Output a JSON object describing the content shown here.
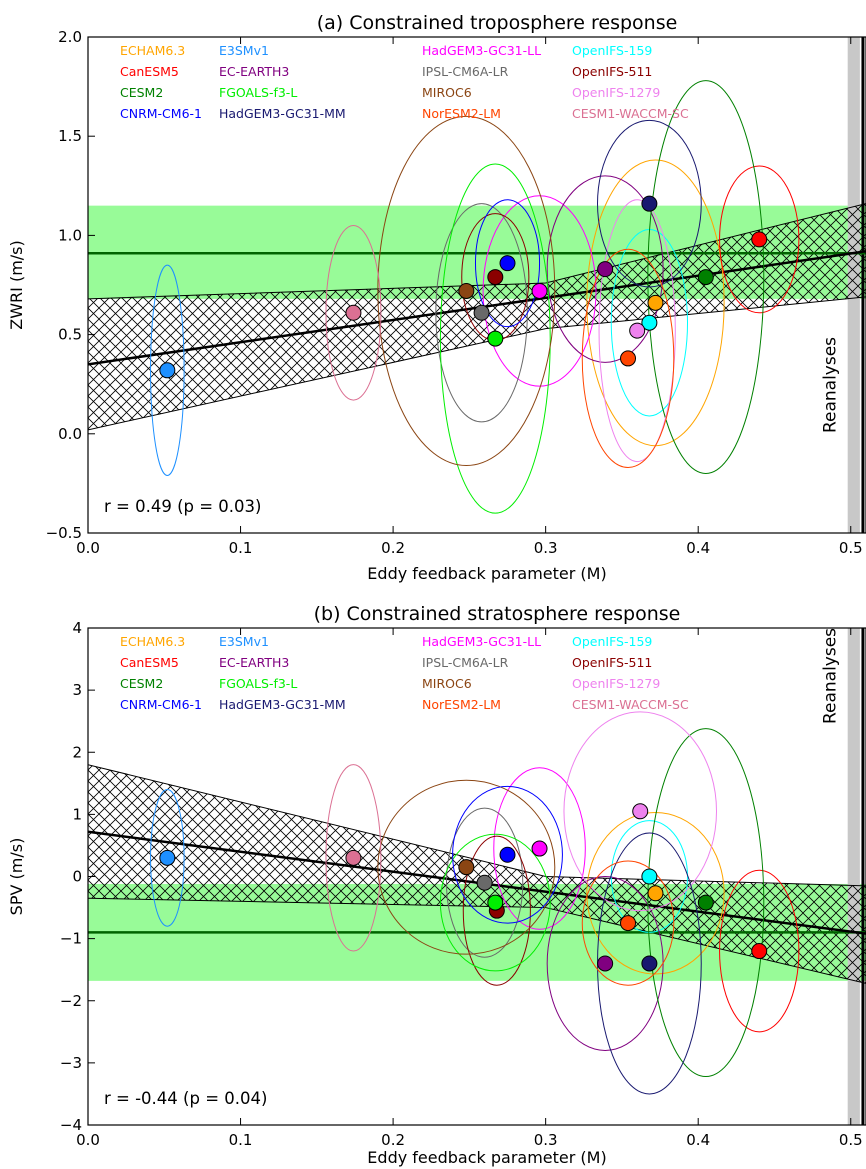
{
  "models": [
    {
      "name": "ECHAM6.3",
      "color": "#FFA500"
    },
    {
      "name": "E3SMv1",
      "color": "#1E90FF"
    },
    {
      "name": "HadGEM3-GC31-LL",
      "color": "#FF00FF"
    },
    {
      "name": "OpenIFS-159",
      "color": "#00FFFF"
    },
    {
      "name": "CanESM5",
      "color": "#FF0000"
    },
    {
      "name": "EC-EARTH3",
      "color": "#800080"
    },
    {
      "name": "IPSL-CM6A-LR",
      "color": "#696969"
    },
    {
      "name": "OpenIFS-511",
      "color": "#8B0000"
    },
    {
      "name": "CESM2",
      "color": "#008000"
    },
    {
      "name": "FGOALS-f3-L",
      "color": "#00EE00"
    },
    {
      "name": "MIROC6",
      "color": "#8B4513"
    },
    {
      "name": "OpenIFS-1279",
      "color": "#EE82EE"
    },
    {
      "name": "CNRM-CM6-1",
      "color": "#0000FF"
    },
    {
      "name": "HadGEM3-GC31-MM",
      "color": "#191970"
    },
    {
      "name": "NorESM2-LM",
      "color": "#FF4500"
    },
    {
      "name": "CESM1-WACCM-SC",
      "color": "#DB7093"
    }
  ],
  "chart_data": [
    {
      "type": "scatter",
      "title": "(a) Constrained troposphere response",
      "xlabel": "Eddy feedback parameter (M)",
      "ylabel": "ZWRI (m/s)",
      "xlim": [
        0.0,
        0.51
      ],
      "ylim": [
        -0.5,
        2.0
      ],
      "xticks": [
        "0.0",
        "0.1",
        "0.2",
        "0.3",
        "0.4",
        "0.5"
      ],
      "yticks": [
        "−0.5",
        "0.0",
        "0.5",
        "1.0",
        "1.5",
        "2.0"
      ],
      "reanalyses_label": "Reanalyses",
      "reanalyses_band": [
        0.498,
        0.506
      ],
      "reanalyses_x": 0.508,
      "stat": "r = 0.49  (p = 0.03)",
      "constraint_mean": 0.91,
      "constraint_range": [
        0.68,
        1.15
      ],
      "regression": {
        "x": [
          0.0,
          0.51
        ],
        "y": [
          0.35,
          0.92
        ]
      },
      "confidence_upper": {
        "x": [
          0.0,
          0.3,
          0.51
        ],
        "y": [
          0.68,
          0.76,
          1.16
        ]
      },
      "confidence_lower": {
        "x": [
          0.0,
          0.3,
          0.51
        ],
        "y": [
          0.02,
          0.53,
          0.69
        ]
      },
      "points": [
        {
          "model": "ECHAM6.3",
          "x": 0.372,
          "y": 0.66,
          "ex": 0.045,
          "ey": 0.72
        },
        {
          "model": "E3SMv1",
          "x": 0.052,
          "y": 0.32,
          "ex": 0.011,
          "ey": 0.53
        },
        {
          "model": "HadGEM3-GC31-LL",
          "x": 0.296,
          "y": 0.72,
          "ex": 0.037,
          "ey": 0.48
        },
        {
          "model": "OpenIFS-159",
          "x": 0.368,
          "y": 0.56,
          "ex": 0.025,
          "ey": 0.47
        },
        {
          "model": "CanESM5",
          "x": 0.44,
          "y": 0.98,
          "ex": 0.026,
          "ey": 0.37
        },
        {
          "model": "EC-EARTH3",
          "x": 0.339,
          "y": 0.83,
          "ex": 0.038,
          "ey": 0.47
        },
        {
          "model": "IPSL-CM6A-LR",
          "x": 0.258,
          "y": 0.61,
          "ex": 0.03,
          "ey": 0.55
        },
        {
          "model": "OpenIFS-511",
          "x": 0.267,
          "y": 0.79,
          "ex": 0.022,
          "ey": 0.32
        },
        {
          "model": "CESM2",
          "x": 0.405,
          "y": 0.79,
          "ex": 0.038,
          "ey": 0.99
        },
        {
          "model": "FGOALS-f3-L",
          "x": 0.267,
          "y": 0.48,
          "ex": 0.036,
          "ey": 0.88
        },
        {
          "model": "MIROC6",
          "x": 0.248,
          "y": 0.72,
          "ex": 0.058,
          "ey": 0.88
        },
        {
          "model": "OpenIFS-1279",
          "x": 0.36,
          "y": 0.52,
          "ex": 0.025,
          "ey": 0.66
        },
        {
          "model": "CNRM-CM6-1",
          "x": 0.275,
          "y": 0.86,
          "ex": 0.021,
          "ey": 0.32
        },
        {
          "model": "HadGEM3-GC31-MM",
          "x": 0.368,
          "y": 1.16,
          "ex": 0.034,
          "ey": 0.42
        },
        {
          "model": "NorESM2-LM",
          "x": 0.354,
          "y": 0.38,
          "ex": 0.03,
          "ey": 0.55
        },
        {
          "model": "CESM1-WACCM-SC",
          "x": 0.174,
          "y": 0.61,
          "ex": 0.018,
          "ey": 0.44
        }
      ]
    },
    {
      "type": "scatter",
      "title": "(b) Constrained stratosphere response",
      "xlabel": "Eddy feedback parameter (M)",
      "ylabel": "SPV (m/s)",
      "xlim": [
        0.0,
        0.51
      ],
      "ylim": [
        -4,
        4
      ],
      "xticks": [
        "0.0",
        "0.1",
        "0.2",
        "0.3",
        "0.4",
        "0.5"
      ],
      "yticks": [
        "−4",
        "−3",
        "−2",
        "−1",
        "0",
        "1",
        "2",
        "3",
        "4"
      ],
      "reanalyses_label": "Reanalyses",
      "reanalyses_band": [
        0.498,
        0.506
      ],
      "reanalyses_x": 0.508,
      "stat": "r = -0.44  (p = 0.04)",
      "constraint_mean": -0.9,
      "constraint_range": [
        -1.68,
        -0.12
      ],
      "regression": {
        "x": [
          0.0,
          0.51
        ],
        "y": [
          0.72,
          -0.92
        ]
      },
      "confidence_upper": {
        "x": [
          0.0,
          0.3,
          0.51
        ],
        "y": [
          1.8,
          0.0,
          -0.15
        ]
      },
      "confidence_lower": {
        "x": [
          0.0,
          0.3,
          0.51
        ],
        "y": [
          -0.35,
          -0.5,
          -1.72
        ]
      },
      "points": [
        {
          "model": "ECHAM6.3",
          "x": 0.372,
          "y": -0.27,
          "ex": 0.045,
          "ey": 1.3
        },
        {
          "model": "E3SMv1",
          "x": 0.052,
          "y": 0.3,
          "ex": 0.011,
          "ey": 1.1
        },
        {
          "model": "HadGEM3-GC31-LL",
          "x": 0.296,
          "y": 0.45,
          "ex": 0.03,
          "ey": 1.3
        },
        {
          "model": "OpenIFS-159",
          "x": 0.368,
          "y": 0.0,
          "ex": 0.025,
          "ey": 0.9
        },
        {
          "model": "CanESM5",
          "x": 0.44,
          "y": -1.2,
          "ex": 0.026,
          "ey": 1.3
        },
        {
          "model": "EC-EARTH3",
          "x": 0.339,
          "y": -1.4,
          "ex": 0.038,
          "ey": 1.4
        },
        {
          "model": "IPSL-CM6A-LR",
          "x": 0.26,
          "y": -0.1,
          "ex": 0.025,
          "ey": 1.2
        },
        {
          "model": "OpenIFS-511",
          "x": 0.268,
          "y": -0.55,
          "ex": 0.022,
          "ey": 1.2
        },
        {
          "model": "CESM2",
          "x": 0.405,
          "y": -0.42,
          "ex": 0.038,
          "ey": 2.8
        },
        {
          "model": "FGOALS-f3-L",
          "x": 0.267,
          "y": -0.42,
          "ex": 0.036,
          "ey": 1.1
        },
        {
          "model": "MIROC6",
          "x": 0.248,
          "y": 0.15,
          "ex": 0.058,
          "ey": 1.4
        },
        {
          "model": "OpenIFS-1279",
          "x": 0.362,
          "y": 1.05,
          "ex": 0.05,
          "ey": 1.6
        },
        {
          "model": "CNRM-CM6-1",
          "x": 0.275,
          "y": 0.35,
          "ex": 0.036,
          "ey": 1.1
        },
        {
          "model": "HadGEM3-GC31-MM",
          "x": 0.368,
          "y": -1.4,
          "ex": 0.034,
          "ey": 2.1
        },
        {
          "model": "NorESM2-LM",
          "x": 0.354,
          "y": -0.75,
          "ex": 0.03,
          "ey": 1.0
        },
        {
          "model": "CESM1-WACCM-SC",
          "x": 0.174,
          "y": 0.3,
          "ex": 0.018,
          "ey": 1.5
        }
      ]
    }
  ]
}
